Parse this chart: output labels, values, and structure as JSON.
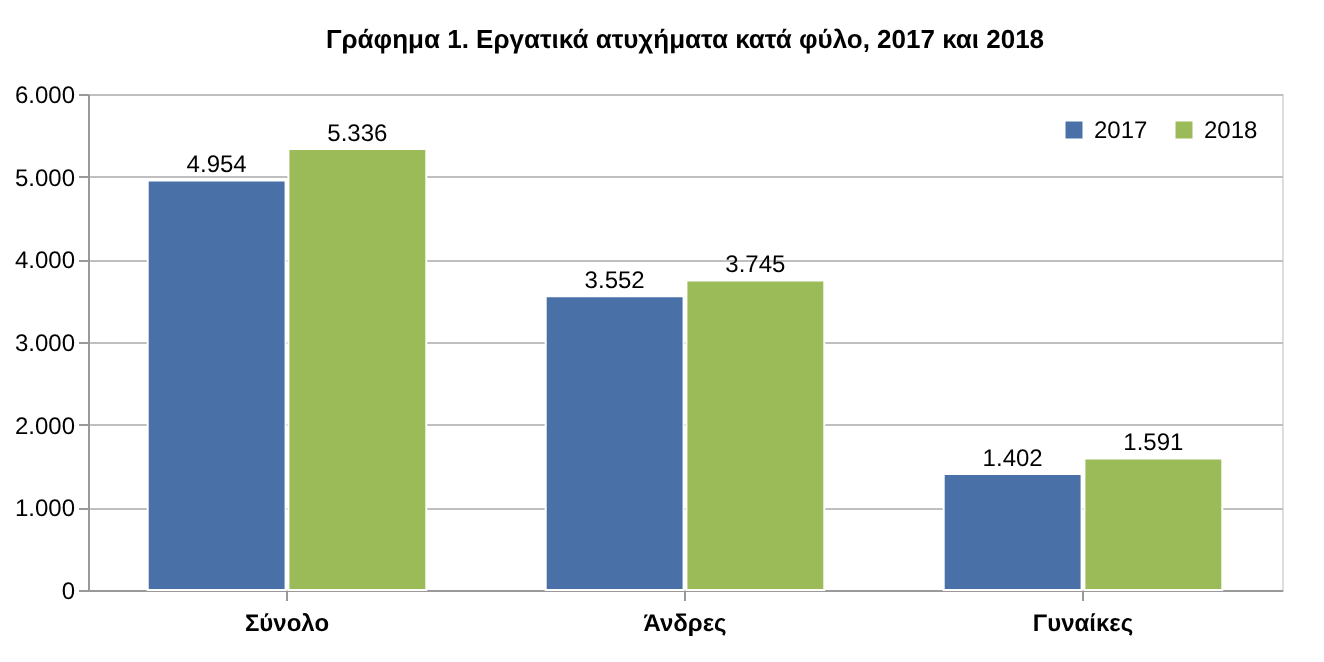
{
  "chart_data": {
    "type": "bar",
    "title": "Γράφημα 1. Εργατικά ατυχήματα κατά φύλο, 2017 και 2018",
    "categories": [
      "Σύνολο",
      "Άνδρες",
      "Γυναίκες"
    ],
    "series": [
      {
        "name": "2017",
        "color": "#4a70a8",
        "values": [
          4954,
          3552,
          1402
        ],
        "value_labels": [
          "4.954",
          "3.552",
          "1.402"
        ]
      },
      {
        "name": "2018",
        "color": "#9bbb59",
        "values": [
          5336,
          3745,
          1591
        ],
        "value_labels": [
          "5.336",
          "3.745",
          "1.591"
        ]
      }
    ],
    "ylim": [
      0,
      6000
    ],
    "yticks": [
      {
        "value": 0,
        "label": "0"
      },
      {
        "value": 1000,
        "label": "1.000"
      },
      {
        "value": 2000,
        "label": "2.000"
      },
      {
        "value": 3000,
        "label": "3.000"
      },
      {
        "value": 4000,
        "label": "4.000"
      },
      {
        "value": 5000,
        "label": "5.000"
      },
      {
        "value": 6000,
        "label": "6.000"
      }
    ],
    "grid": "y",
    "legend": "top right"
  }
}
